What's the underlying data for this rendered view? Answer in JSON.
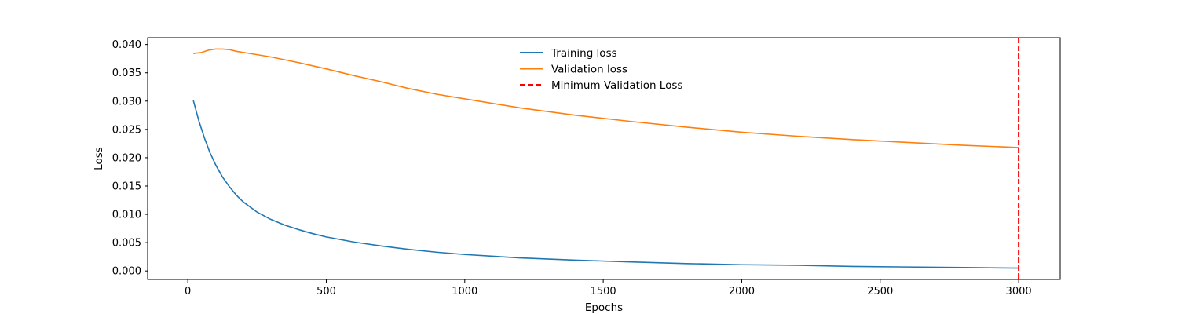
{
  "chart_data": {
    "type": "line",
    "title": "",
    "xlabel": "Epochs",
    "ylabel": "Loss",
    "xlim": [
      -145,
      3150
    ],
    "ylim": [
      -0.0015,
      0.0412
    ],
    "xticks": [
      0,
      500,
      1000,
      1500,
      2000,
      2500,
      3000
    ],
    "xtick_labels": [
      "0",
      "500",
      "1000",
      "1500",
      "2000",
      "2500",
      "3000"
    ],
    "yticks": [
      0.0,
      0.005,
      0.01,
      0.015,
      0.02,
      0.025,
      0.03,
      0.035,
      0.04
    ],
    "ytick_labels": [
      "0.000",
      "0.005",
      "0.010",
      "0.015",
      "0.020",
      "0.025",
      "0.030",
      "0.035",
      "0.040"
    ],
    "grid": false,
    "legend_position": "upper-center",
    "series": [
      {
        "name": "Training loss",
        "color": "#1f77b4",
        "style": "solid",
        "x": [
          20,
          40,
          60,
          80,
          100,
          125,
          150,
          175,
          200,
          250,
          300,
          350,
          400,
          450,
          500,
          600,
          700,
          800,
          900,
          1000,
          1200,
          1400,
          1600,
          1800,
          2000,
          2200,
          2400,
          2600,
          2800,
          3000
        ],
        "y": [
          0.0301,
          0.0265,
          0.0235,
          0.0209,
          0.0188,
          0.0166,
          0.0149,
          0.0134,
          0.0122,
          0.0104,
          0.0091,
          0.0081,
          0.0073,
          0.0066,
          0.006,
          0.0051,
          0.0044,
          0.0038,
          0.0033,
          0.0029,
          0.0023,
          0.0019,
          0.0016,
          0.0013,
          0.0011,
          0.001,
          0.0008,
          0.0007,
          0.0006,
          0.0005
        ]
      },
      {
        "name": "Validation loss",
        "color": "#ff7f0e",
        "style": "solid",
        "x": [
          20,
          50,
          75,
          100,
          125,
          150,
          175,
          200,
          250,
          300,
          400,
          500,
          600,
          700,
          800,
          900,
          1000,
          1200,
          1400,
          1600,
          1800,
          2000,
          2200,
          2400,
          2600,
          2800,
          3000
        ],
        "y": [
          0.0384,
          0.0386,
          0.039,
          0.0392,
          0.0392,
          0.0391,
          0.0388,
          0.0386,
          0.0382,
          0.0378,
          0.0368,
          0.0357,
          0.0345,
          0.0334,
          0.0322,
          0.0312,
          0.0304,
          0.0288,
          0.0275,
          0.0264,
          0.0254,
          0.0245,
          0.0238,
          0.0232,
          0.0227,
          0.0222,
          0.0218
        ]
      },
      {
        "name": "Minimum Validation Loss",
        "color": "#ff0000",
        "style": "dashed",
        "vline_x": 3000
      }
    ]
  }
}
